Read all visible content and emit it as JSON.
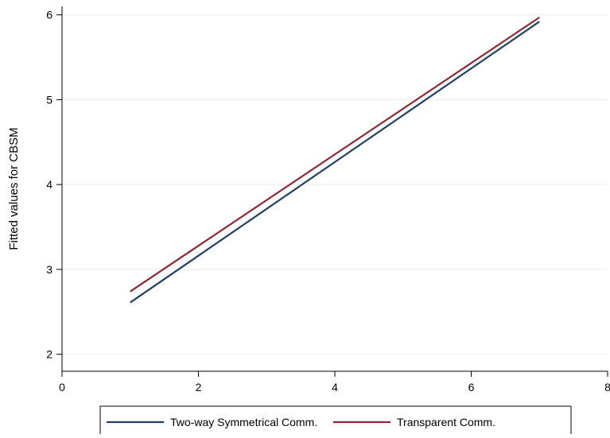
{
  "chart_data": {
    "type": "line",
    "title": "",
    "xlabel": "",
    "ylabel": "Fitted values for CBSM",
    "xlim": [
      0,
      8
    ],
    "ylim": [
      1.8,
      6.1
    ],
    "x_ticks": [
      "0",
      "2",
      "4",
      "6",
      "8"
    ],
    "y_ticks": [
      "2",
      "3",
      "4",
      "5",
      "6"
    ],
    "grid": "horizontal",
    "legend_position": "bottom",
    "series": [
      {
        "name": "Two-way Symmetrical Comm.",
        "color": "#1f3f66",
        "x": [
          1,
          7
        ],
        "y": [
          2.61,
          5.92
        ]
      },
      {
        "name": "Transparent Comm.",
        "color": "#8b2a35",
        "x": [
          1,
          7
        ],
        "y": [
          2.74,
          5.97
        ]
      }
    ]
  }
}
